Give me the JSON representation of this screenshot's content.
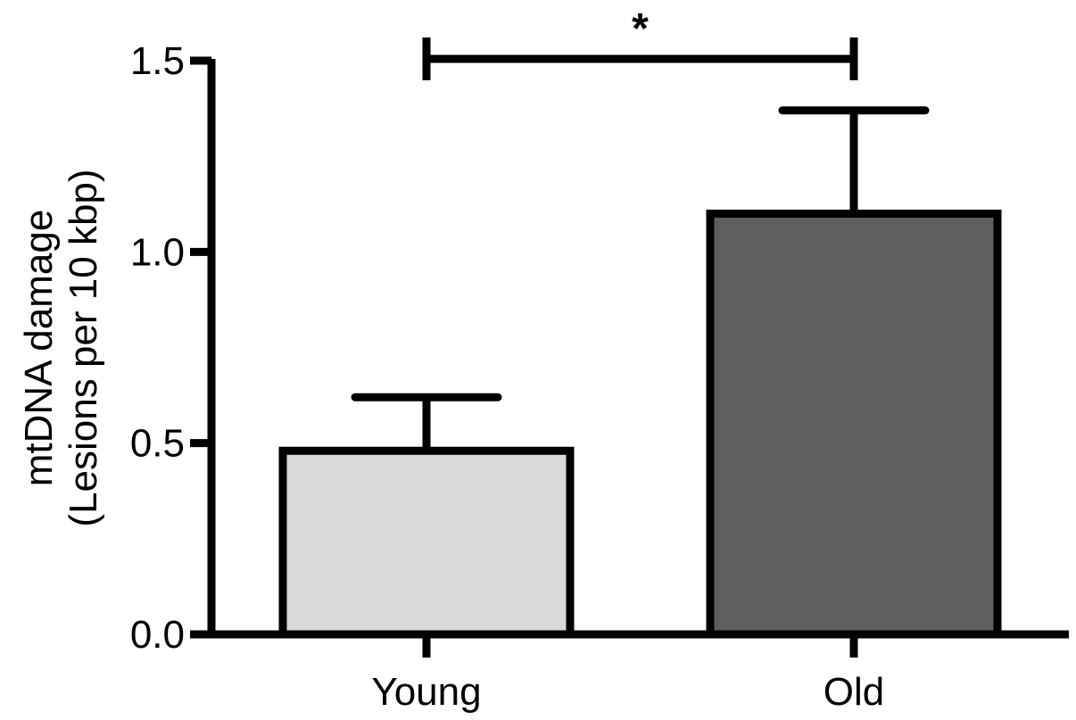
{
  "chart_data": {
    "type": "bar",
    "title": "",
    "xlabel": "",
    "ylabel_lines": [
      "mtDNA damage",
      "(Lesions per 10 kbp)"
    ],
    "categories": [
      "Young",
      "Old"
    ],
    "values": [
      0.48,
      1.1
    ],
    "errors": [
      0.14,
      0.27
    ],
    "bar_colors": [
      "#d9d9d9",
      "#5e5e5e"
    ],
    "ylim": [
      0,
      1.5
    ],
    "yticks": [
      0.0,
      0.5,
      1.0,
      1.5
    ],
    "ytick_labels": [
      "0.0",
      "0.5",
      "1.0",
      "1.5"
    ],
    "grid": false,
    "significance": {
      "between": [
        0,
        1
      ],
      "label": "*"
    }
  }
}
